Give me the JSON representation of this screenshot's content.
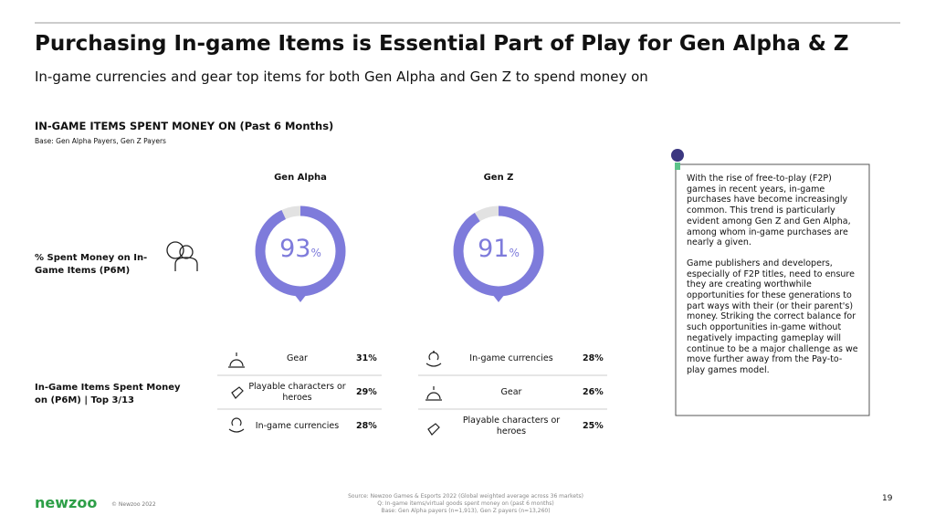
{
  "header": {
    "title": "Purchasing In-game Items is Essential Part of Play for Gen Alpha & Z",
    "subtitle": "In-game currencies and gear top items for both Gen Alpha and Gen Z to spend money on"
  },
  "section": {
    "title": "IN-GAME ITEMS SPENT MONEY ON (Past 6 Months)",
    "base": "Base: Gen Alpha Payers, Gen Z Payers"
  },
  "row_labels": [
    "% Spent Money on In-Game Items (P6M)",
    "In-Game Items Spent Money on (P6M) | Top 3/13"
  ],
  "groups": [
    {
      "name": "Gen Alpha",
      "percent": 93,
      "percent_unit": "%",
      "items": [
        {
          "label": "Gear",
          "value": "31%"
        },
        {
          "label": "Playable characters or heroes",
          "value": "29%"
        },
        {
          "label": "In-game currencies",
          "value": "28%"
        }
      ]
    },
    {
      "name": "Gen Z",
      "percent": 91,
      "percent_unit": "%",
      "items": [
        {
          "label": "In-game currencies",
          "value": "28%"
        },
        {
          "label": "Gear",
          "value": "26%"
        },
        {
          "label": "Playable characters or heroes",
          "value": "25%"
        }
      ]
    }
  ],
  "note": [
    "With the rise of free-to-play (F2P) games in recent years, in-game purchases have become increasingly common. This trend is particularly evident among Gen Z and Gen Alpha, among whom in-game purchases are nearly a given.",
    "Game publishers and developers, especially of F2P titles, need to ensure they are creating worthwhile opportunities for these generations to part ways with their (or their parent's) money. Striking the correct balance for such opportunities in-game without negatively impacting gameplay will continue to be a major challenge as we move further away from the Pay-to-play games model."
  ],
  "footer": {
    "logo": "newzoo",
    "copyright": "© Newzoo 2022",
    "source": [
      "Source: Newzoo Games & Esports 2022 (Global weighted average across 36 markets)",
      "Q: In-game items/virtual goods spent money on (past 6 months)",
      "Base: Gen Alpha payers (n=1,913), Gen Z payers (n=13,260)"
    ],
    "page": "19"
  }
}
